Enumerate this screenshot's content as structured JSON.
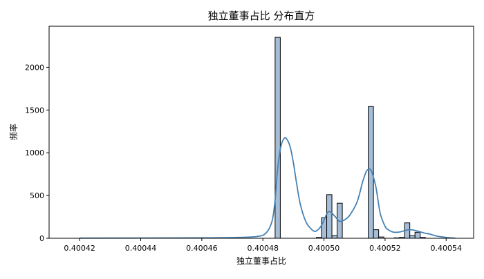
{
  "chart_data": {
    "type": "bar",
    "title": "独立董事占比 分布直方",
    "xlabel": "独立董事占比",
    "ylabel": "频率",
    "xlim": [
      0.40041,
      0.400549
    ],
    "ylim": [
      0,
      2480
    ],
    "x_ticks": [
      0.40042,
      0.40044,
      0.40046,
      0.40048,
      0.4005,
      0.40052,
      0.40054
    ],
    "x_tick_labels": [
      "0.40042",
      "0.40044",
      "0.40046",
      "0.40048",
      "0.40050",
      "0.40052",
      "0.40054"
    ],
    "y_ticks": [
      0,
      500,
      1000,
      1500,
      2000
    ],
    "y_tick_labels": [
      "0",
      "500",
      "1000",
      "1500",
      "2000"
    ],
    "bar_color": "#a6bdd7",
    "bar_edge_color": "#000000",
    "kde_color": "#4682b4",
    "bins": [
      {
        "x0": 0.400484,
        "x1": 0.4004857,
        "count": 2350
      },
      {
        "x0": 0.4004975,
        "x1": 0.4004992,
        "count": 10
      },
      {
        "x0": 0.4004992,
        "x1": 0.4005009,
        "count": 240
      },
      {
        "x0": 0.4005009,
        "x1": 0.4005026,
        "count": 510
      },
      {
        "x0": 0.4005026,
        "x1": 0.4005043,
        "count": 30
      },
      {
        "x0": 0.4005043,
        "x1": 0.400506,
        "count": 410
      },
      {
        "x0": 0.4005145,
        "x1": 0.4005162,
        "count": 1540
      },
      {
        "x0": 0.4005162,
        "x1": 0.4005179,
        "count": 100
      },
      {
        "x0": 0.4005179,
        "x1": 0.4005196,
        "count": 15
      },
      {
        "x0": 0.400523,
        "x1": 0.4005247,
        "count": 5
      },
      {
        "x0": 0.4005247,
        "x1": 0.4005264,
        "count": 10
      },
      {
        "x0": 0.4005264,
        "x1": 0.4005281,
        "count": 180
      },
      {
        "x0": 0.4005281,
        "x1": 0.4005298,
        "count": 30
      },
      {
        "x0": 0.4005298,
        "x1": 0.4005315,
        "count": 70
      },
      {
        "x0": 0.4005315,
        "x1": 0.4005332,
        "count": 10
      }
    ],
    "kde": {
      "x": [
        0.40042,
        0.40046,
        0.400472,
        0.400478,
        0.400481,
        0.400483,
        0.400484,
        0.4004848,
        0.4004858,
        0.400487,
        0.400488,
        0.400489,
        0.40049,
        0.400491,
        0.400492,
        0.400493,
        0.400494,
        0.400495,
        0.400497,
        0.400499,
        0.400501,
        0.400502,
        0.4005035,
        0.400505,
        0.4005065,
        0.400508,
        0.400509,
        0.40051,
        0.400511,
        0.4005118,
        0.4005125,
        0.4005132,
        0.400514,
        0.400515,
        0.4005155,
        0.400516,
        0.400517,
        0.4005178,
        0.4005185,
        0.40052,
        0.400521,
        0.400522,
        0.400523,
        0.400524,
        0.400525,
        0.400526,
        0.400527,
        0.4005285,
        0.40053,
        0.4005315,
        0.400533,
        0.4005345,
        0.400537,
        0.40054,
        0.400543
      ],
      "y": [
        2,
        5,
        10,
        20,
        60,
        200,
        450,
        800,
        1060,
        1170,
        1150,
        1060,
        880,
        650,
        440,
        300,
        200,
        140,
        80,
        140,
        290,
        310,
        260,
        200,
        210,
        250,
        300,
        360,
        440,
        540,
        640,
        720,
        790,
        810,
        790,
        740,
        600,
        420,
        280,
        140,
        100,
        80,
        70,
        70,
        75,
        85,
        95,
        100,
        90,
        75,
        60,
        50,
        25,
        10,
        2
      ]
    }
  }
}
